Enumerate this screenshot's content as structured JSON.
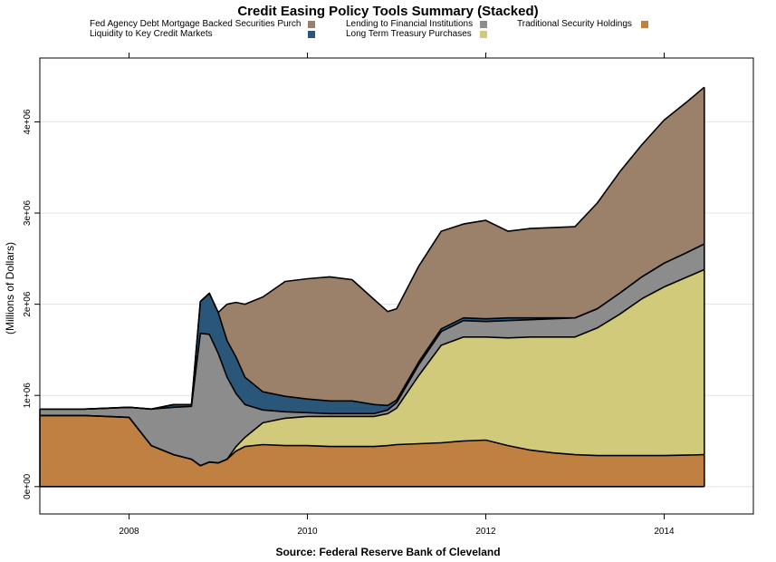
{
  "chart_data": {
    "type": "area",
    "stacked": true,
    "title": "Credit Easing Policy Tools Summary (Stacked)",
    "xlabel": "Source: Federal Reserve Bank of Cleveland",
    "ylabel": "(Millions of Dollars)",
    "xlim": [
      2007.0,
      2015.0
    ],
    "ylim": [
      -300000,
      4700000
    ],
    "x_ticks": [
      2008,
      2010,
      2012,
      2014
    ],
    "x_tick_labels": [
      "2008",
      "2010",
      "2012",
      "2014"
    ],
    "y_ticks": [
      0,
      1000000,
      2000000,
      3000000,
      4000000
    ],
    "y_tick_labels": [
      "0e+00",
      "1e+06",
      "2e+06",
      "3e+06",
      "4e+06"
    ],
    "grid": "horizontal",
    "legend_position": "top",
    "x": [
      2007.0,
      2007.5,
      2008.0,
      2008.25,
      2008.5,
      2008.7,
      2008.8,
      2008.9,
      2009.0,
      2009.1,
      2009.2,
      2009.3,
      2009.5,
      2009.75,
      2010.0,
      2010.25,
      2010.5,
      2010.75,
      2010.9,
      2011.0,
      2011.25,
      2011.5,
      2011.75,
      2012.0,
      2012.25,
      2012.5,
      2012.75,
      2013.0,
      2013.25,
      2013.5,
      2013.75,
      2014.0,
      2014.25,
      2014.45
    ],
    "series": [
      {
        "name": "Traditional Security Holdings",
        "color": "#C08042",
        "values": [
          780000,
          780000,
          760000,
          450000,
          350000,
          300000,
          230000,
          270000,
          260000,
          300000,
          390000,
          440000,
          460000,
          450000,
          450000,
          440000,
          440000,
          440000,
          450000,
          460000,
          470000,
          480000,
          500000,
          510000,
          450000,
          400000,
          370000,
          350000,
          340000,
          340000,
          340000,
          340000,
          345000,
          350000
        ]
      },
      {
        "name": "Long Term Treasury Purchases",
        "color": "#D1CA7A",
        "values": [
          0,
          0,
          0,
          0,
          0,
          0,
          0,
          0,
          0,
          0,
          50000,
          100000,
          240000,
          300000,
          320000,
          330000,
          330000,
          330000,
          350000,
          400000,
          750000,
          1070000,
          1140000,
          1130000,
          1180000,
          1240000,
          1270000,
          1290000,
          1400000,
          1550000,
          1720000,
          1850000,
          1950000,
          2030000
        ]
      },
      {
        "name": "Lending to Financial Institutions",
        "color": "#8C8C8C",
        "values": [
          70000,
          70000,
          110000,
          400000,
          520000,
          580000,
          1450000,
          1400000,
          1200000,
          900000,
          580000,
          360000,
          140000,
          70000,
          40000,
          30000,
          30000,
          30000,
          40000,
          60000,
          120000,
          150000,
          180000,
          170000,
          190000,
          190000,
          200000,
          210000,
          210000,
          230000,
          240000,
          260000,
          270000,
          280000
        ]
      },
      {
        "name": "Liquidity to Key Credit Markets",
        "color": "#2A5679",
        "values": [
          0,
          0,
          0,
          0,
          30000,
          20000,
          350000,
          450000,
          450000,
          400000,
          400000,
          300000,
          200000,
          170000,
          150000,
          140000,
          140000,
          100000,
          50000,
          30000,
          30000,
          30000,
          30000,
          30000,
          30000,
          20000,
          10000,
          0,
          0,
          0,
          0,
          0,
          0,
          0
        ]
      },
      {
        "name": "Fed Agency Debt  Mortgage Backed Securities Purch",
        "color": "#9C816A",
        "values": [
          0,
          0,
          0,
          0,
          0,
          0,
          0,
          0,
          0,
          400000,
          600000,
          800000,
          1040000,
          1260000,
          1320000,
          1360000,
          1330000,
          1150000,
          1030000,
          1000000,
          1050000,
          1070000,
          1030000,
          1080000,
          950000,
          980000,
          990000,
          1000000,
          1160000,
          1330000,
          1450000,
          1570000,
          1650000,
          1720000
        ]
      }
    ]
  }
}
